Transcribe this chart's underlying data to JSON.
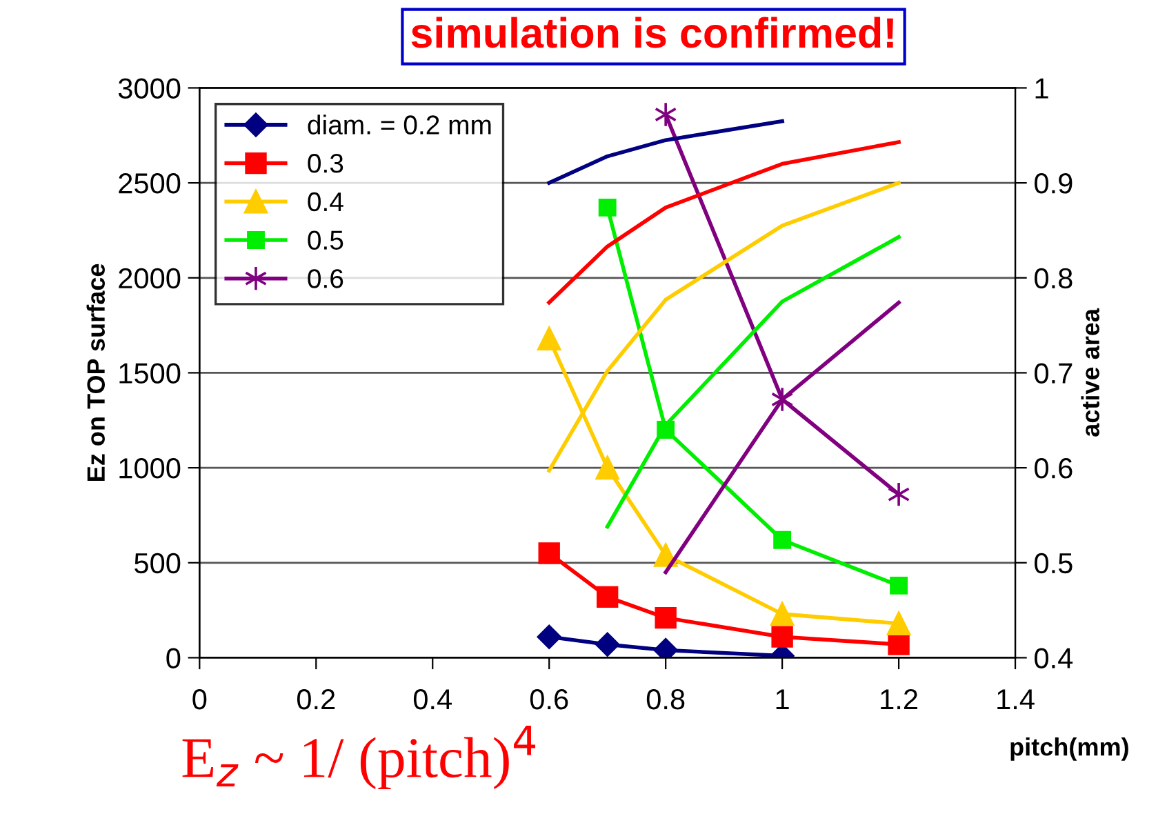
{
  "chart_data": {
    "type": "line",
    "title": "simulation is confirmed!",
    "xlabel": "pitch(mm)",
    "ylabel": "Ez on TOP surface",
    "y2label": "active area",
    "annotations": [
      "E$_{z}$ ~ 1/ (pitch)$^{4}$"
    ],
    "xlim": [
      0,
      1.4
    ],
    "xticks": [
      0,
      0.2,
      0.4,
      0.6,
      0.8,
      1,
      1.2,
      1.4
    ],
    "ylim": [
      0,
      3000
    ],
    "yticks": [
      0,
      500,
      1000,
      1500,
      2000,
      2500,
      3000
    ],
    "y2lim": [
      0.4,
      1
    ],
    "y2ticks": [
      0.4,
      0.5,
      0.6,
      0.7,
      0.8,
      0.9,
      1
    ],
    "grid": "y",
    "legend": "top left",
    "series": [
      {
        "name": "diam. = 0.2 mm",
        "color": "#000080",
        "marker": "diamond",
        "x": [
          0.6,
          0.7,
          0.8,
          1.0
        ],
        "values": [
          110,
          70,
          40,
          10
        ]
      },
      {
        "name": "0.3",
        "color": "#ff0000",
        "marker": "square",
        "x": [
          0.6,
          0.7,
          0.8,
          1.0,
          1.2
        ],
        "values": [
          550,
          320,
          210,
          110,
          70
        ]
      },
      {
        "name": "0.4",
        "color": "#ffcc00",
        "marker": "triangle",
        "x": [
          0.6,
          0.7,
          0.8,
          1.0,
          1.2
        ],
        "values": [
          1680,
          1000,
          540,
          230,
          180
        ]
      },
      {
        "name": "0.5",
        "color": "#00ee00",
        "marker": "square",
        "x": [
          0.7,
          0.8,
          1.0,
          1.2
        ],
        "values": [
          2370,
          1200,
          620,
          380
        ]
      },
      {
        "name": "0.6",
        "color": "#800080",
        "marker": "cross",
        "x": [
          0.8,
          1.0,
          1.2
        ],
        "values": [
          2860,
          1360,
          860
        ]
      },
      {
        "color": "#000080",
        "marker": "none",
        "axis": "y2",
        "x": [
          0.6,
          0.7,
          0.8,
          1.0
        ],
        "values": [
          0.9,
          0.928,
          0.945,
          0.965
        ]
      },
      {
        "color": "#ff0000",
        "marker": "none",
        "axis": "y2",
        "x": [
          0.6,
          0.7,
          0.8,
          1.0,
          1.2
        ],
        "values": [
          0.774,
          0.833,
          0.874,
          0.92,
          0.943
        ]
      },
      {
        "color": "#ffcc00",
        "marker": "none",
        "axis": "y2",
        "x": [
          0.6,
          0.7,
          0.8,
          1.0,
          1.2
        ],
        "values": [
          0.597,
          0.702,
          0.777,
          0.855,
          0.9
        ]
      },
      {
        "color": "#00ee00",
        "marker": "none",
        "axis": "y2",
        "x": [
          0.7,
          0.8,
          1.0,
          1.2
        ],
        "values": [
          0.538,
          0.645,
          0.775,
          0.843
        ]
      },
      {
        "color": "#800080",
        "marker": "none",
        "axis": "y2",
        "x": [
          0.8,
          1.0,
          1.2
        ],
        "values": [
          0.49,
          0.672,
          0.774
        ]
      }
    ]
  }
}
